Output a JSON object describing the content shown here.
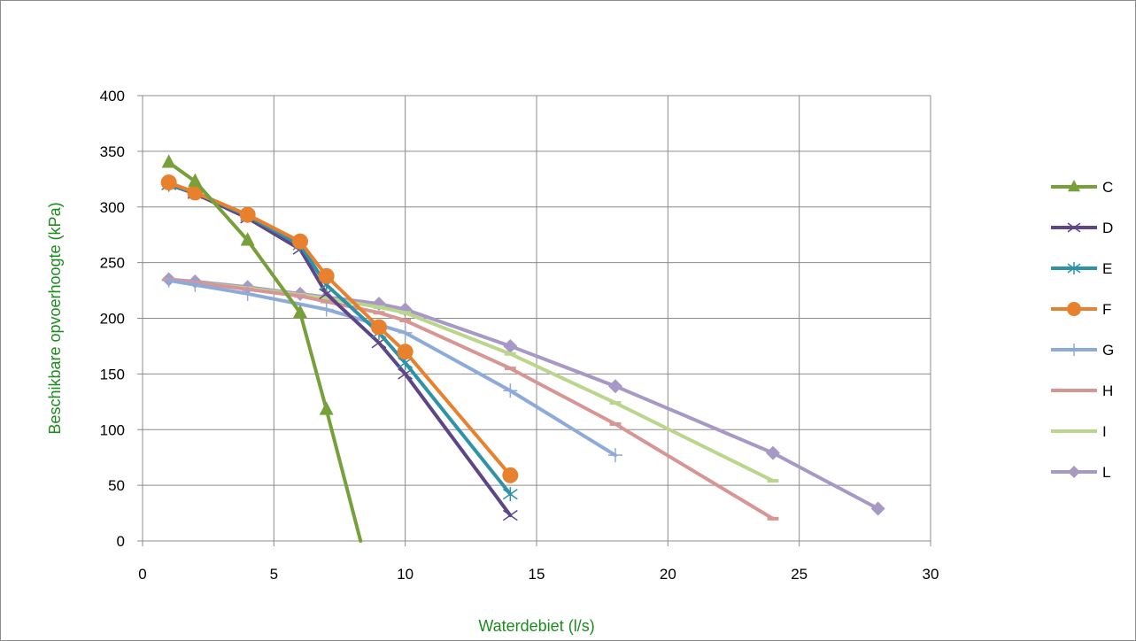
{
  "chart_data": {
    "type": "line",
    "title": "",
    "xlabel": "Waterdebiet (l/s)",
    "ylabel": "Beschikbare opvoerhoogte (kPa)",
    "axis_label_color": "#1d8a1d",
    "xlim": [
      0,
      30
    ],
    "ylim": [
      0,
      400
    ],
    "x_ticks": [
      0,
      5,
      10,
      15,
      20,
      25,
      30
    ],
    "y_ticks": [
      0,
      50,
      100,
      150,
      200,
      250,
      300,
      350,
      400
    ],
    "grid": true,
    "legend_position": "right",
    "series": [
      {
        "name": "C",
        "color": "#77a03b",
        "marker": "triangle",
        "x": [
          1,
          2,
          4,
          6,
          7,
          8.3
        ],
        "y": [
          340,
          323,
          270,
          205,
          118,
          0
        ]
      },
      {
        "name": "D",
        "color": "#5e4686",
        "marker": "x",
        "x": [
          1,
          2,
          4,
          6,
          7,
          9,
          10,
          14
        ],
        "y": [
          320,
          312,
          290,
          262,
          222,
          178,
          150,
          23
        ]
      },
      {
        "name": "E",
        "color": "#2f93a8",
        "marker": "star",
        "x": [
          1,
          2,
          4,
          6,
          7,
          9,
          10,
          14
        ],
        "y": [
          320,
          313,
          292,
          266,
          230,
          187,
          160,
          42
        ]
      },
      {
        "name": "F",
        "color": "#e8812e",
        "marker": "circle",
        "x": [
          1,
          2,
          4,
          6,
          7,
          9,
          10,
          14
        ],
        "y": [
          322,
          313,
          293,
          269,
          238,
          192,
          170,
          59
        ]
      },
      {
        "name": "G",
        "color": "#8eaad8",
        "marker": "plus",
        "x": [
          1,
          2,
          4,
          7,
          10,
          14,
          18
        ],
        "y": [
          234,
          230,
          222,
          208,
          187,
          135,
          77
        ]
      },
      {
        "name": "H",
        "color": "#d79594",
        "marker": "dash",
        "x": [
          1,
          2,
          4,
          6,
          7,
          9,
          10,
          14,
          18,
          24
        ],
        "y": [
          235,
          232,
          226,
          220,
          215,
          205,
          198,
          155,
          105,
          20
        ]
      },
      {
        "name": "I",
        "color": "#bad58c",
        "marker": "dash",
        "x": [
          1,
          2,
          4,
          6,
          7,
          9,
          10,
          14,
          18,
          24
        ],
        "y": [
          235,
          232,
          227,
          221,
          218,
          210,
          205,
          168,
          124,
          54
        ]
      },
      {
        "name": "L",
        "color": "#a898c6",
        "marker": "diamond",
        "x": [
          1,
          2,
          4,
          6,
          7,
          9,
          10,
          14,
          18,
          24,
          28
        ],
        "y": [
          235,
          233,
          228,
          222,
          219,
          213,
          208,
          175,
          139,
          79,
          29
        ]
      }
    ]
  }
}
